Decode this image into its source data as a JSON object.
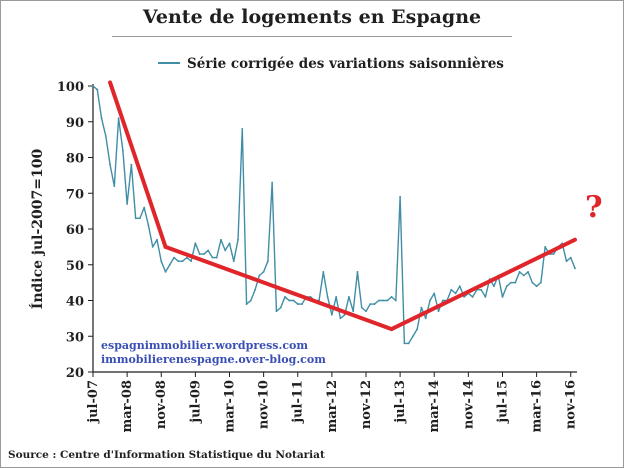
{
  "header": {
    "source": "Source : Centre d'Information Statistique du Notariat"
  },
  "colors": {
    "series": "#3f8ea6",
    "trend": "#e0262a",
    "axis": "#1f1f1f",
    "note": "#3a4fb5"
  },
  "annotations": {
    "question_mark": "?",
    "links": [
      "espagnimmobilier.wordpress.com",
      "immobilierenespagne.over-blog.com"
    ]
  },
  "chart_data": {
    "type": "line",
    "title": "Vente de logements en Espagne",
    "ylabel": "Índice jul-2007=100",
    "xlabel": "",
    "ylim": [
      20,
      100
    ],
    "y_ticks": [
      20,
      30,
      40,
      50,
      60,
      70,
      80,
      90,
      100
    ],
    "x_range": [
      0,
      113
    ],
    "x_ticks": [
      {
        "label": "jul-07",
        "x": 0
      },
      {
        "label": "mar-08",
        "x": 8
      },
      {
        "label": "nov-08",
        "x": 16
      },
      {
        "label": "jul-09",
        "x": 24
      },
      {
        "label": "mar-10",
        "x": 32
      },
      {
        "label": "nov-10",
        "x": 40
      },
      {
        "label": "jul-11",
        "x": 48
      },
      {
        "label": "mar-12",
        "x": 56
      },
      {
        "label": "nov-12",
        "x": 64
      },
      {
        "label": "jul-13",
        "x": 72
      },
      {
        "label": "mar-14",
        "x": 80
      },
      {
        "label": "nov-14",
        "x": 88
      },
      {
        "label": "jul-15",
        "x": 96
      },
      {
        "label": "mar-16",
        "x": 104
      },
      {
        "label": "nov-16",
        "x": 112
      }
    ],
    "legend_position": "top-center",
    "grid": false,
    "series": [
      {
        "name": "Série corrigée des variations saisonnières",
        "values": [
          100,
          99,
          91,
          86,
          78,
          72,
          91,
          82,
          67,
          78,
          63,
          63,
          66,
          61,
          55,
          57,
          51,
          48,
          50,
          52,
          51,
          51,
          52,
          51,
          56,
          53,
          53,
          54,
          52,
          52,
          57,
          54,
          56,
          51,
          57,
          88,
          39,
          40,
          43,
          47,
          48,
          51,
          73,
          37,
          38,
          41,
          40,
          40,
          39,
          39,
          41,
          41,
          40,
          40,
          48,
          41,
          36,
          41,
          35,
          36,
          41,
          37,
          48,
          38,
          37,
          39,
          39,
          40,
          40,
          40,
          41,
          40,
          69,
          28,
          28,
          30,
          32,
          38,
          35,
          40,
          42,
          37,
          40,
          40,
          43,
          42,
          44,
          41,
          42,
          41,
          43,
          43,
          41,
          46,
          44,
          47,
          41,
          44,
          45,
          45,
          48,
          47,
          48,
          45,
          44,
          45,
          55,
          53,
          53,
          55,
          56,
          51,
          52,
          49
        ]
      }
    ],
    "trend_lines": [
      {
        "x": [
          4,
          17
        ],
        "y": [
          101,
          55
        ]
      },
      {
        "x": [
          17,
          70
        ],
        "y": [
          55,
          32
        ]
      },
      {
        "x": [
          70,
          113
        ],
        "y": [
          32,
          57
        ]
      }
    ]
  }
}
